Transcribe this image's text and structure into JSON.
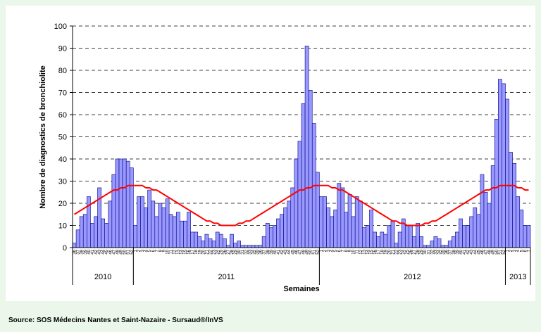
{
  "chart_data": {
    "type": "bar",
    "y_label": "Nombre de diagnostics de bronchiolite",
    "x_label": "Semaines",
    "source": "Source: SOS Médecins Nantes et Saint-Nazaire - Sursaud®/InVS",
    "years": [
      "2010",
      "2011",
      "2012",
      "2013"
    ],
    "categories": [
      "36",
      "37",
      "38",
      "39",
      "40",
      "41",
      "42",
      "43",
      "44",
      "45",
      "46",
      "47",
      "48",
      "49",
      "50",
      "51",
      "52",
      "1",
      "2",
      "3",
      "4",
      "5",
      "6",
      "7",
      "8",
      "9",
      "10",
      "11",
      "12",
      "13",
      "14",
      "15",
      "16",
      "17",
      "18",
      "19",
      "20",
      "21",
      "22",
      "23",
      "24",
      "25",
      "26",
      "27",
      "28",
      "29",
      "30",
      "31",
      "32",
      "33",
      "34",
      "35",
      "36",
      "37",
      "38",
      "39",
      "40",
      "41",
      "42",
      "43",
      "44",
      "45",
      "46",
      "47",
      "48",
      "49",
      "50",
      "51",
      "52",
      "1",
      "2",
      "3",
      "4",
      "5",
      "6",
      "7",
      "8",
      "9",
      "10",
      "11",
      "12",
      "13",
      "14",
      "15",
      "16",
      "17",
      "18",
      "19",
      "20",
      "21",
      "22",
      "23",
      "24",
      "25",
      "26",
      "27",
      "28",
      "29",
      "30",
      "31",
      "32",
      "33",
      "34",
      "35",
      "36",
      "37",
      "38",
      "39",
      "40",
      "41",
      "42",
      "43",
      "44",
      "45",
      "46",
      "47",
      "48",
      "49",
      "50",
      "51",
      "52",
      "1",
      "2",
      "3",
      "4",
      "5",
      "6",
      "7"
    ],
    "series": [
      {
        "type": "bar",
        "color": "#9999ff",
        "values": [
          2,
          8,
          14,
          15,
          23,
          11,
          14,
          27,
          13,
          11,
          21,
          33,
          40,
          40,
          40,
          39,
          36,
          10,
          23,
          23,
          18,
          26,
          21,
          14,
          20,
          18,
          22,
          15,
          14,
          16,
          12,
          12,
          16,
          7,
          7,
          5,
          3,
          6,
          4,
          3,
          7,
          6,
          4,
          1,
          6,
          2,
          3,
          1,
          1,
          1,
          1,
          1,
          1,
          5,
          11,
          9,
          10,
          13,
          15,
          18,
          21,
          27,
          40,
          48,
          65,
          91,
          71,
          56,
          34,
          23,
          23,
          18,
          14,
          17,
          29,
          27,
          16,
          24,
          14,
          23,
          21,
          9,
          10,
          17,
          7,
          5,
          7,
          6,
          10,
          12,
          2,
          7,
          13,
          10,
          10,
          5,
          11,
          5,
          1,
          1,
          3,
          5,
          4,
          1,
          1,
          3,
          5,
          7,
          13,
          10,
          10,
          14,
          18,
          15,
          33,
          25,
          20,
          37,
          58,
          76,
          74,
          67,
          43,
          38,
          23,
          17,
          10,
          10
        ]
      },
      {
        "type": "line",
        "color": "#ff0000",
        "values": [
          15,
          16,
          17,
          18,
          19,
          20,
          21,
          22,
          23,
          24,
          25,
          26,
          26,
          27,
          27,
          28,
          28,
          28,
          28,
          28,
          27,
          27,
          26,
          26,
          25,
          24,
          23,
          22,
          21,
          20,
          19,
          18,
          17,
          16,
          15,
          14,
          13,
          12,
          12,
          11,
          11,
          10,
          10,
          10,
          10,
          10,
          11,
          11,
          12,
          12,
          13,
          14,
          15,
          16,
          17,
          18,
          19,
          20,
          21,
          22,
          23,
          24,
          25,
          26,
          26,
          27,
          27,
          28,
          28,
          28,
          28,
          28,
          27,
          27,
          26,
          26,
          25,
          24,
          23,
          22,
          21,
          20,
          19,
          18,
          17,
          16,
          15,
          14,
          13,
          12,
          12,
          11,
          11,
          10,
          10,
          10,
          10,
          10,
          11,
          11,
          12,
          12,
          13,
          14,
          15,
          16,
          17,
          18,
          19,
          20,
          21,
          22,
          23,
          24,
          25,
          26,
          26,
          27,
          27,
          28,
          28,
          28,
          28,
          28,
          27,
          27,
          26,
          26
        ]
      }
    ],
    "ylim": [
      0,
      100
    ],
    "yticks": [
      0,
      10,
      20,
      30,
      40,
      50,
      60,
      70,
      80,
      90,
      100
    ],
    "grid": true
  }
}
